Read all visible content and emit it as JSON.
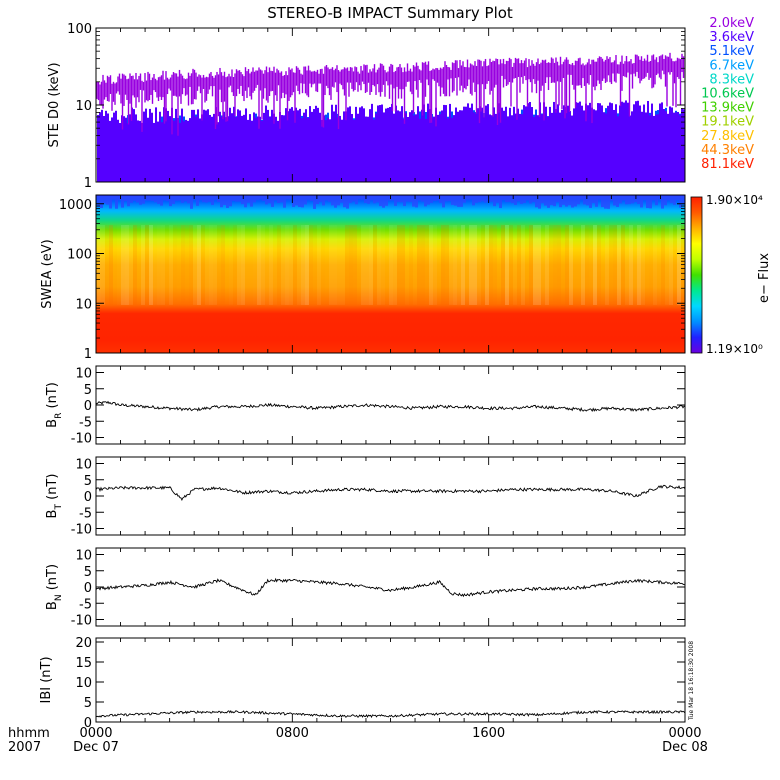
{
  "title": "STEREO-B IMPACT Summary Plot",
  "timestamp": "Tue Mar 18 16:18:30 2008",
  "time_axis": {
    "corner_top": "hhmm",
    "corner_bottom": "2007",
    "ticks": [
      {
        "label": "0000",
        "sub": "Dec 07",
        "t": 0
      },
      {
        "label": "0800",
        "sub": "",
        "t": 8
      },
      {
        "label": "1600",
        "sub": "",
        "t": 16
      },
      {
        "label": "0000",
        "sub": "Dec 08",
        "t": 24
      }
    ],
    "range_hours": [
      0,
      24
    ]
  },
  "colorbar": {
    "max_label": "1.90×10⁴",
    "min_label": "1.19×10⁰",
    "label": "e− Flux",
    "colors": [
      "#6a00e0",
      "#2020ff",
      "#0090ff",
      "#00d8ff",
      "#00e890",
      "#40e000",
      "#c0ff00",
      "#ffff00",
      "#ffb000",
      "#ff5a00",
      "#ff2000"
    ]
  },
  "chart_data": [
    {
      "type": "line",
      "name": "ste",
      "ylabel": "STE D0 (keV)",
      "scale": "log",
      "ylim": [
        1,
        100
      ],
      "ytick_labels": [
        "1",
        "10",
        "100"
      ],
      "ytick_values": [
        1,
        10,
        100
      ],
      "energy_channels": [
        {
          "label": "2.0keV",
          "color": "#9900e0"
        },
        {
          "label": "3.6keV",
          "color": "#5500ff"
        },
        {
          "label": "5.1keV",
          "color": "#0050ff"
        },
        {
          "label": "6.7keV",
          "color": "#00a0ff"
        },
        {
          "label": "8.3keV",
          "color": "#00d8c8"
        },
        {
          "label": "10.6keV",
          "color": "#00c850"
        },
        {
          "label": "13.9keV",
          "color": "#40d000"
        },
        {
          "label": "19.1keV",
          "color": "#a0d000"
        },
        {
          "label": "27.8keV",
          "color": "#ffc000"
        },
        {
          "label": "44.3keV",
          "color": "#ff8000"
        },
        {
          "label": "81.1keV",
          "color": "#ff2000"
        }
      ],
      "levels": {
        "x_hours": [
          0,
          4,
          8,
          12,
          16,
          20,
          24
        ],
        "top_channel": [
          18,
          22,
          24,
          26,
          30,
          32,
          36
        ]
      }
    },
    {
      "type": "heatmap",
      "name": "swea",
      "ylabel": "SWEA (eV)",
      "scale": "log",
      "ylim": [
        1,
        1500
      ],
      "ytick_labels": [
        "1",
        "10",
        "100",
        "1000"
      ],
      "ytick_values": [
        1,
        10,
        100,
        1000
      ]
    },
    {
      "type": "line",
      "name": "br",
      "ylabel": "B",
      "ylabel_sub": "R",
      "ylabel_unit": "(nT)",
      "ylim": [
        -12,
        12
      ],
      "ytick_labels": [
        "10",
        "5",
        "0",
        "-5",
        "-10"
      ],
      "ytick_values": [
        10,
        5,
        0,
        -5,
        -10
      ],
      "x": [
        0,
        0.5,
        1,
        2,
        3,
        4,
        5,
        6,
        7,
        8,
        9,
        10,
        11,
        12,
        13,
        14,
        15,
        16,
        17,
        18,
        19,
        20,
        21,
        22,
        23,
        24
      ],
      "y": [
        0.5,
        0.8,
        0,
        -0.5,
        -1,
        -1.5,
        -0.5,
        -0.5,
        0,
        -0.5,
        -1,
        -0.5,
        0,
        -0.5,
        -1,
        -0.5,
        -0.5,
        -1,
        -1,
        -0.5,
        -1,
        -1.5,
        -1,
        -1.5,
        -1,
        -0.5
      ]
    },
    {
      "type": "line",
      "name": "bt",
      "ylabel": "B",
      "ylabel_sub": "T",
      "ylabel_unit": "(nT)",
      "ylim": [
        -12,
        12
      ],
      "ytick_labels": [
        "10",
        "5",
        "0",
        "-5",
        "-10"
      ],
      "ytick_values": [
        10,
        5,
        0,
        -5,
        -10
      ],
      "x": [
        0,
        1,
        2,
        3,
        3.5,
        4,
        5,
        6,
        7,
        8,
        9,
        10,
        11,
        12,
        13,
        14,
        15,
        16,
        17,
        18,
        19,
        20,
        21,
        22,
        23,
        24
      ],
      "y": [
        2,
        2.5,
        2.5,
        2.5,
        -1,
        2,
        2.5,
        1,
        1.5,
        1,
        1.5,
        2,
        2,
        1.5,
        1.5,
        1.5,
        1.5,
        1.5,
        2,
        2,
        2,
        2,
        1.5,
        0,
        3,
        2.5
      ]
    },
    {
      "type": "line",
      "name": "bn",
      "ylabel": "B",
      "ylabel_sub": "N",
      "ylabel_unit": "(nT)",
      "ylim": [
        -12,
        12
      ],
      "ytick_labels": [
        "10",
        "5",
        "0",
        "-5",
        "-10"
      ],
      "ytick_values": [
        10,
        5,
        0,
        -5,
        -10
      ],
      "x": [
        0,
        1,
        2,
        3,
        4,
        5,
        6,
        6.5,
        7,
        8,
        9,
        10,
        11,
        12,
        13,
        14,
        14.5,
        15,
        16,
        17,
        18,
        19,
        20,
        21,
        22,
        23,
        24
      ],
      "y": [
        -0.5,
        0,
        0.5,
        1.5,
        0,
        2,
        -1,
        -2.5,
        2,
        2,
        1.5,
        1,
        0,
        -1,
        0,
        1.5,
        -2,
        -2.5,
        -1.5,
        -1,
        -0.5,
        -0.5,
        0,
        1,
        2,
        1.5,
        1
      ]
    },
    {
      "type": "line",
      "name": "bmag",
      "ylabel": "IBI (nT)",
      "ylim": [
        0,
        21
      ],
      "ytick_labels": [
        "20",
        "15",
        "10",
        "5",
        "0"
      ],
      "ytick_values": [
        20,
        15,
        10,
        5,
        0
      ],
      "x": [
        0,
        2,
        4,
        6,
        8,
        10,
        12,
        14,
        16,
        18,
        20,
        22,
        24
      ],
      "y": [
        1.5,
        2,
        2.5,
        2.5,
        2,
        1.5,
        1.5,
        2,
        2,
        1.8,
        2.5,
        2.5,
        2.5
      ]
    }
  ]
}
